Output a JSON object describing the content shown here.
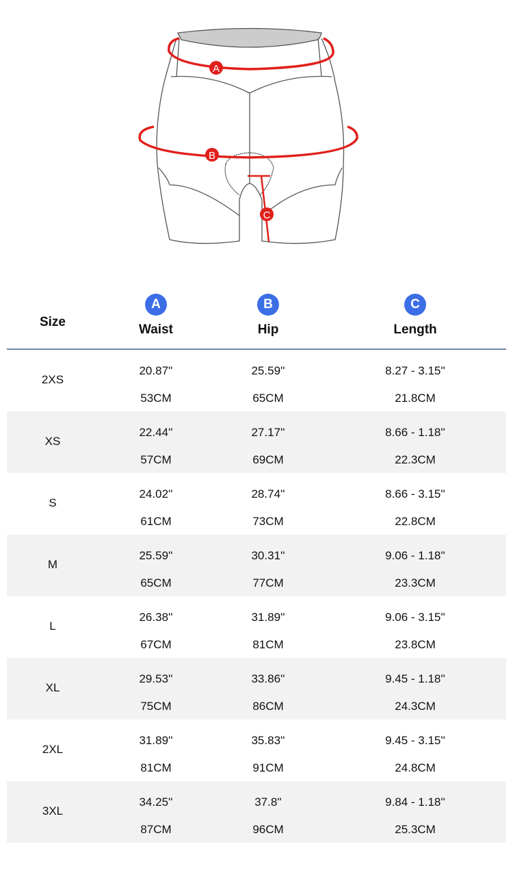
{
  "illustration": {
    "markers": [
      "A",
      "B",
      "C"
    ],
    "accent_color": "#e0201c"
  },
  "table": {
    "header": {
      "size": "Size",
      "columns": [
        {
          "badge": "A",
          "label": "Waist"
        },
        {
          "badge": "B",
          "label": "Hip"
        },
        {
          "badge": "C",
          "label": "Length"
        }
      ],
      "badge_color": "#3c6ee6"
    },
    "rows": [
      {
        "size": "2XS",
        "waist_in": "20.87''",
        "waist_cm": "53CM",
        "hip_in": "25.59''",
        "hip_cm": "65CM",
        "length_in": "8.27 - 3.15''",
        "length_cm": "21.8CM"
      },
      {
        "size": "XS",
        "waist_in": "22.44''",
        "waist_cm": "57CM",
        "hip_in": "27.17''",
        "hip_cm": "69CM",
        "length_in": "8.66 - 1.18''",
        "length_cm": "22.3CM"
      },
      {
        "size": "S",
        "waist_in": "24.02''",
        "waist_cm": "61CM",
        "hip_in": "28.74''",
        "hip_cm": "73CM",
        "length_in": "8.66 - 3.15''",
        "length_cm": "22.8CM"
      },
      {
        "size": "M",
        "waist_in": "25.59''",
        "waist_cm": "65CM",
        "hip_in": "30.31''",
        "hip_cm": "77CM",
        "length_in": "9.06 - 1.18''",
        "length_cm": "23.3CM"
      },
      {
        "size": "L",
        "waist_in": "26.38''",
        "waist_cm": "67CM",
        "hip_in": "31.89''",
        "hip_cm": "81CM",
        "length_in": "9.06 - 3.15''",
        "length_cm": "23.8CM"
      },
      {
        "size": "XL",
        "waist_in": "29.53''",
        "waist_cm": "75CM",
        "hip_in": "33.86''",
        "hip_cm": "86CM",
        "length_in": "9.45 - 1.18''",
        "length_cm": "24.3CM"
      },
      {
        "size": "2XL",
        "waist_in": "31.89''",
        "waist_cm": "81CM",
        "hip_in": "35.83''",
        "hip_cm": "91CM",
        "length_in": "9.45 - 3.15''",
        "length_cm": "24.8CM"
      },
      {
        "size": "3XL",
        "waist_in": "34.25''",
        "waist_cm": "87CM",
        "hip_in": "37.8''",
        "hip_cm": "96CM",
        "length_in": "9.84 - 1.18''",
        "length_cm": "25.3CM"
      }
    ]
  }
}
